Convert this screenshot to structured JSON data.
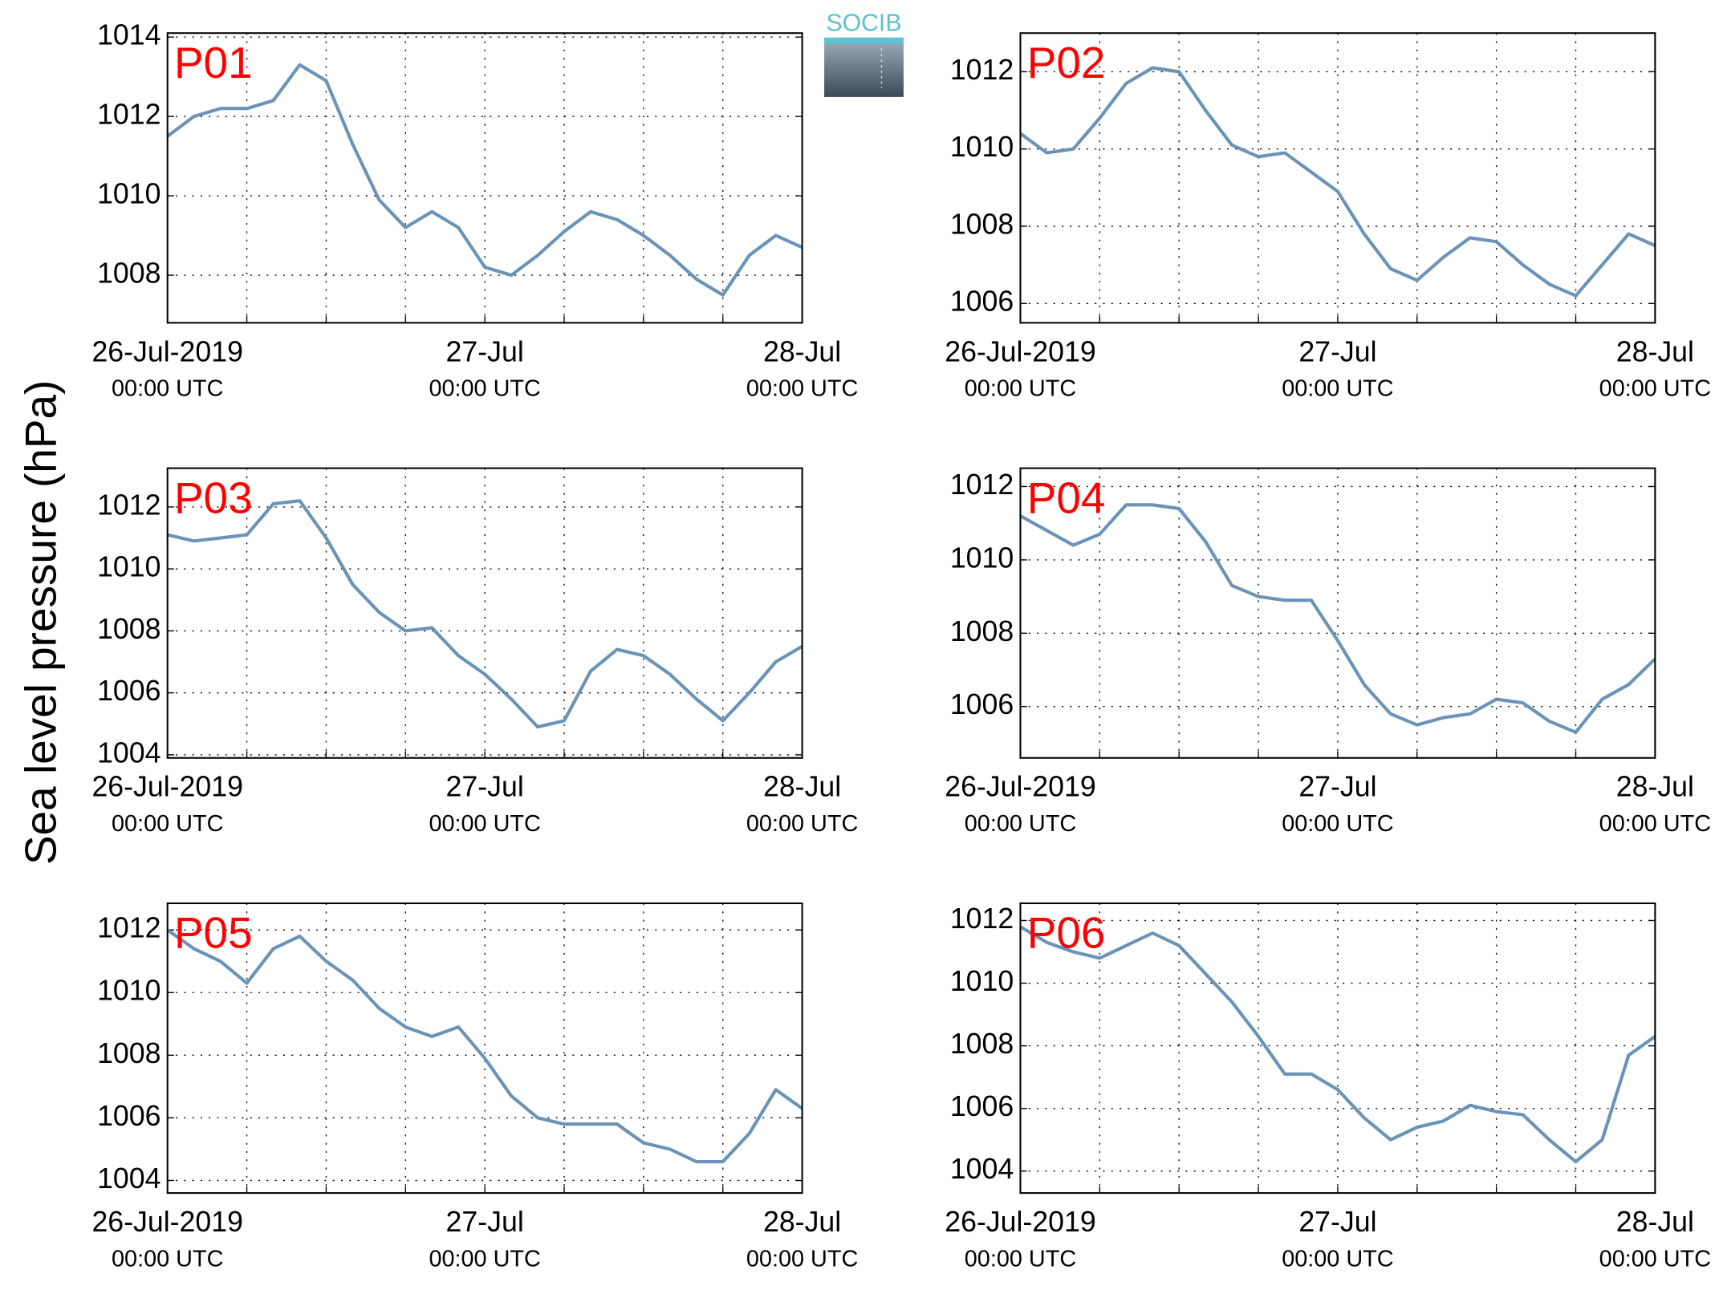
{
  "ylabel": "Sea level pressure (hPa)",
  "logo": "SOCIB",
  "chart_data": [
    {
      "type": "line",
      "annotation": "P01",
      "color": "#6a93b8",
      "xlim": [
        0,
        48
      ],
      "ylim": [
        1006.8,
        1014.1
      ],
      "yticks": [
        1008,
        1010,
        1012,
        1014
      ],
      "grid": true,
      "xticks": [
        {
          "value": 0,
          "label": "26-Jul-2019",
          "sublabel": "00:00 UTC"
        },
        6,
        12,
        18,
        {
          "value": 24,
          "label": "27-Jul",
          "sublabel": "00:00 UTC"
        },
        30,
        36,
        42,
        {
          "value": 48,
          "label": "28-Jul",
          "sublabel": "00:00 UTC"
        }
      ],
      "x": [
        0,
        2,
        4,
        6,
        8,
        10,
        12,
        14,
        16,
        18,
        20,
        22,
        24,
        26,
        28,
        30,
        32,
        34,
        36,
        38,
        40,
        42,
        44,
        46,
        48
      ],
      "values": [
        1011.5,
        1012.0,
        1012.2,
        1012.2,
        1012.4,
        1013.3,
        1012.9,
        1011.3,
        1009.9,
        1009.2,
        1009.6,
        1009.2,
        1008.2,
        1008.0,
        1008.5,
        1009.1,
        1009.6,
        1009.4,
        1009.0,
        1008.5,
        1007.9,
        1007.5,
        1008.5,
        1009.0,
        1008.7
      ]
    },
    {
      "type": "line",
      "annotation": "P02",
      "color": "#6a93b8",
      "xlim": [
        0,
        48
      ],
      "ylim": [
        1005.5,
        1013
      ],
      "yticks": [
        1006,
        1008,
        1010,
        1012
      ],
      "grid": true,
      "xticks": [
        {
          "value": 0,
          "label": "26-Jul-2019",
          "sublabel": "00:00 UTC"
        },
        6,
        12,
        18,
        {
          "value": 24,
          "label": "27-Jul",
          "sublabel": "00:00 UTC"
        },
        30,
        36,
        42,
        {
          "value": 48,
          "label": "28-Jul",
          "sublabel": "00:00 UTC"
        }
      ],
      "x": [
        0,
        2,
        4,
        6,
        8,
        10,
        12,
        14,
        16,
        18,
        20,
        22,
        24,
        26,
        28,
        30,
        32,
        34,
        36,
        38,
        40,
        42,
        44,
        46,
        48
      ],
      "values": [
        1010.4,
        1009.9,
        1010.0,
        1010.8,
        1011.7,
        1012.1,
        1012.0,
        1011.0,
        1010.1,
        1009.8,
        1009.9,
        1009.4,
        1008.9,
        1007.8,
        1006.9,
        1006.6,
        1007.2,
        1007.7,
        1007.6,
        1007.0,
        1006.5,
        1006.2,
        1007.0,
        1007.8,
        1007.5
      ]
    },
    {
      "type": "line",
      "annotation": "P03",
      "color": "#6a93b8",
      "xlim": [
        0,
        48
      ],
      "ylim": [
        1003.9,
        1013.25
      ],
      "yticks": [
        1004,
        1006,
        1008,
        1010,
        1012
      ],
      "grid": true,
      "xticks": [
        {
          "value": 0,
          "label": "26-Jul-2019",
          "sublabel": "00:00 UTC"
        },
        6,
        12,
        18,
        {
          "value": 24,
          "label": "27-Jul",
          "sublabel": "00:00 UTC"
        },
        30,
        36,
        42,
        {
          "value": 48,
          "label": "28-Jul",
          "sublabel": "00:00 UTC"
        }
      ],
      "x": [
        0,
        2,
        4,
        6,
        8,
        10,
        12,
        14,
        16,
        18,
        20,
        22,
        24,
        26,
        28,
        30,
        32,
        34,
        36,
        38,
        40,
        42,
        44,
        46,
        48
      ],
      "values": [
        1011.1,
        1010.9,
        1011.0,
        1011.1,
        1012.1,
        1012.2,
        1011.0,
        1009.5,
        1008.6,
        1008.0,
        1008.1,
        1007.2,
        1006.6,
        1005.8,
        1004.9,
        1005.1,
        1006.7,
        1007.4,
        1007.2,
        1006.6,
        1005.8,
        1005.1,
        1006.0,
        1007.0,
        1007.5
      ]
    },
    {
      "type": "line",
      "annotation": "P04",
      "color": "#6a93b8",
      "xlim": [
        0,
        48
      ],
      "ylim": [
        1004.6,
        1012.5
      ],
      "yticks": [
        1006,
        1008,
        1010,
        1012
      ],
      "grid": true,
      "xticks": [
        {
          "value": 0,
          "label": "26-Jul-2019",
          "sublabel": "00:00 UTC"
        },
        6,
        12,
        18,
        {
          "value": 24,
          "label": "27-Jul",
          "sublabel": "00:00 UTC"
        },
        30,
        36,
        42,
        {
          "value": 48,
          "label": "28-Jul",
          "sublabel": "00:00 UTC"
        }
      ],
      "x": [
        0,
        2,
        4,
        6,
        8,
        10,
        12,
        14,
        16,
        18,
        20,
        22,
        24,
        26,
        28,
        30,
        32,
        34,
        36,
        38,
        40,
        42,
        44,
        46,
        48
      ],
      "values": [
        1011.2,
        1010.8,
        1010.4,
        1010.7,
        1011.5,
        1011.5,
        1011.4,
        1010.5,
        1009.3,
        1009.0,
        1008.9,
        1008.9,
        1007.8,
        1006.6,
        1005.8,
        1005.5,
        1005.7,
        1005.8,
        1006.2,
        1006.1,
        1005.6,
        1005.3,
        1006.2,
        1006.6,
        1007.3
      ]
    },
    {
      "type": "line",
      "annotation": "P05",
      "color": "#6a93b8",
      "xlim": [
        0,
        48
      ],
      "ylim": [
        1003.6,
        1012.85
      ],
      "yticks": [
        1004,
        1006,
        1008,
        1010,
        1012
      ],
      "grid": true,
      "xticks": [
        {
          "value": 0,
          "label": "26-Jul-2019",
          "sublabel": "00:00 UTC"
        },
        6,
        12,
        18,
        {
          "value": 24,
          "label": "27-Jul",
          "sublabel": "00:00 UTC"
        },
        30,
        36,
        42,
        {
          "value": 48,
          "label": "28-Jul",
          "sublabel": "00:00 UTC"
        }
      ],
      "x": [
        0,
        2,
        4,
        6,
        8,
        10,
        12,
        14,
        16,
        18,
        20,
        22,
        24,
        26,
        28,
        30,
        32,
        34,
        36,
        38,
        40,
        42,
        44,
        46,
        48
      ],
      "values": [
        1012.0,
        1011.4,
        1011.0,
        1010.3,
        1011.4,
        1011.8,
        1011.0,
        1010.4,
        1009.5,
        1008.9,
        1008.6,
        1008.9,
        1007.9,
        1006.7,
        1006.0,
        1005.8,
        1005.8,
        1005.8,
        1005.2,
        1005.0,
        1004.6,
        1004.6,
        1005.5,
        1006.9,
        1006.3
      ]
    },
    {
      "type": "line",
      "annotation": "P06",
      "color": "#6a93b8",
      "xlim": [
        0,
        48
      ],
      "ylim": [
        1003.3,
        1012.55
      ],
      "yticks": [
        1004,
        1006,
        1008,
        1010,
        1012
      ],
      "grid": true,
      "xticks": [
        {
          "value": 0,
          "label": "26-Jul-2019",
          "sublabel": "00:00 UTC"
        },
        6,
        12,
        18,
        {
          "value": 24,
          "label": "27-Jul",
          "sublabel": "00:00 UTC"
        },
        30,
        36,
        42,
        {
          "value": 48,
          "label": "28-Jul",
          "sublabel": "00:00 UTC"
        }
      ],
      "x": [
        0,
        2,
        4,
        6,
        8,
        10,
        12,
        14,
        16,
        18,
        20,
        22,
        24,
        26,
        28,
        30,
        32,
        34,
        36,
        38,
        40,
        42,
        44,
        46,
        48
      ],
      "values": [
        1011.8,
        1011.3,
        1011.0,
        1010.8,
        1011.2,
        1011.6,
        1011.2,
        1010.3,
        1009.4,
        1008.3,
        1007.1,
        1007.1,
        1006.6,
        1005.7,
        1005.0,
        1005.4,
        1005.6,
        1006.1,
        1005.9,
        1005.8,
        1005.0,
        1004.3,
        1005.0,
        1007.7,
        1008.3
      ]
    }
  ]
}
